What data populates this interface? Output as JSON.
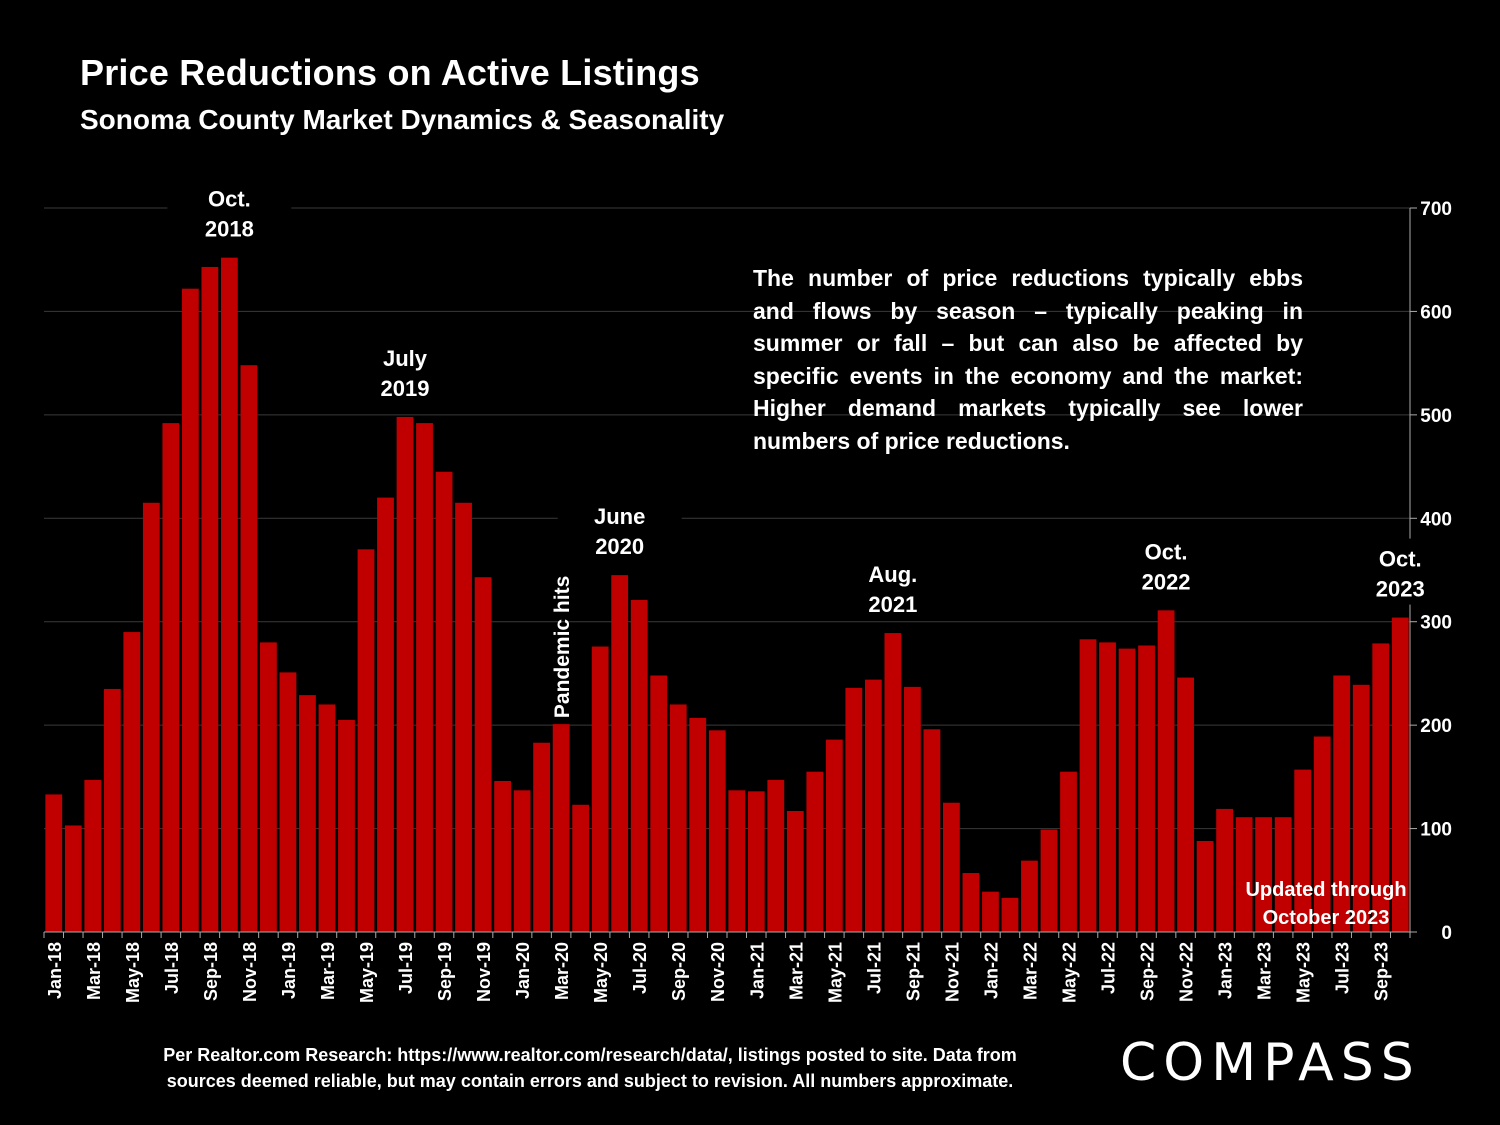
{
  "title": "Price Reductions on Active Listings",
  "subtitle": "Sonoma County Market Dynamics & Seasonality",
  "note": "The number of price reductions typically ebbs and flows by season – typically peaking in summer or fall – but can also be affected by specific events in the economy and the market: Higher demand markets typically see lower numbers of price reductions.",
  "source_line1": "Per Realtor.com Research:  https://www.realtor.com/research/data/, listings posted to site. Data from",
  "source_line2": "sources deemed reliable, but may contain errors and subject to revision. All numbers approximate.",
  "logo": "COMPASS",
  "colors": {
    "bar": "#c00000",
    "background": "#000000",
    "text": "#ffffff",
    "grid": "#3a3a3a"
  },
  "chart_data": {
    "type": "bar",
    "title": "Price Reductions on Active Listings",
    "ylim": [
      0,
      700
    ],
    "yticks": [
      0,
      100,
      200,
      300,
      400,
      500,
      600,
      700
    ],
    "y_axis_side": "right",
    "grid": true,
    "categories": [
      "Jan-18",
      "Feb-18",
      "Mar-18",
      "Apr-18",
      "May-18",
      "Jun-18",
      "Jul-18",
      "Aug-18",
      "Sep-18",
      "Oct-18",
      "Nov-18",
      "Dec-18",
      "Jan-19",
      "Feb-19",
      "Mar-19",
      "Apr-19",
      "May-19",
      "Jun-19",
      "Jul-19",
      "Aug-19",
      "Sep-19",
      "Oct-19",
      "Nov-19",
      "Dec-19",
      "Jan-20",
      "Feb-20",
      "Mar-20",
      "Apr-20",
      "May-20",
      "Jun-20",
      "Jul-20",
      "Aug-20",
      "Sep-20",
      "Oct-20",
      "Nov-20",
      "Dec-20",
      "Jan-21",
      "Feb-21",
      "Mar-21",
      "Apr-21",
      "May-21",
      "Jun-21",
      "Jul-21",
      "Aug-21",
      "Sep-21",
      "Oct-21",
      "Nov-21",
      "Dec-21",
      "Jan-22",
      "Feb-22",
      "Mar-22",
      "Apr-22",
      "May-22",
      "Jun-22",
      "Jul-22",
      "Aug-22",
      "Sep-22",
      "Oct-22",
      "Nov-22",
      "Dec-22",
      "Jan-23",
      "Feb-23",
      "Mar-23",
      "Apr-23",
      "May-23",
      "Jun-23",
      "Jul-23",
      "Aug-23",
      "Sep-23",
      "Oct-23"
    ],
    "values": [
      133,
      103,
      147,
      235,
      290,
      415,
      492,
      622,
      643,
      652,
      548,
      280,
      251,
      229,
      220,
      205,
      370,
      420,
      498,
      492,
      445,
      415,
      343,
      146,
      137,
      183,
      201,
      123,
      276,
      345,
      321,
      248,
      220,
      207,
      195,
      137,
      136,
      147,
      117,
      155,
      186,
      236,
      244,
      289,
      237,
      196,
      125,
      57,
      39,
      33,
      69,
      99,
      155,
      283,
      280,
      274,
      277,
      311,
      246,
      88,
      119,
      111,
      111,
      111,
      157,
      189,
      248,
      239,
      279,
      304
    ],
    "xtick_labels": [
      "Jan-18",
      "Mar-18",
      "May-18",
      "Jul-18",
      "Sep-18",
      "Nov-18",
      "Jan-19",
      "Mar-19",
      "May-19",
      "Jul-19",
      "Sep-19",
      "Nov-19",
      "Jan-20",
      "Mar-20",
      "May-20",
      "Jul-20",
      "Sep-20",
      "Nov-20",
      "Jan-21",
      "Mar-21",
      "May-21",
      "Jul-21",
      "Sep-21",
      "Nov-21",
      "Jan-22",
      "Mar-22",
      "May-22",
      "Jul-22",
      "Sep-22",
      "Nov-22",
      "Jan-23",
      "Mar-23",
      "May-23",
      "Jul-23",
      "Sep-23"
    ],
    "annotations": [
      {
        "category": "Oct-18",
        "line1": "Oct.",
        "line2": "2018"
      },
      {
        "category": "Jul-19",
        "line1": "July",
        "line2": "2019"
      },
      {
        "category": "Jun-20",
        "line1": "June",
        "line2": "2020"
      },
      {
        "category": "Aug-21",
        "line1": "Aug.",
        "line2": "2021"
      },
      {
        "category": "Oct-22",
        "line1": "Oct.",
        "line2": "2022"
      },
      {
        "category": "Oct-23",
        "line1": "Oct.",
        "line2": "2023"
      }
    ],
    "event_label": {
      "category": "Mar-20",
      "text": "Pandemic hits"
    },
    "update_note": {
      "line1": "Updated through",
      "line2": "October 2023"
    }
  }
}
